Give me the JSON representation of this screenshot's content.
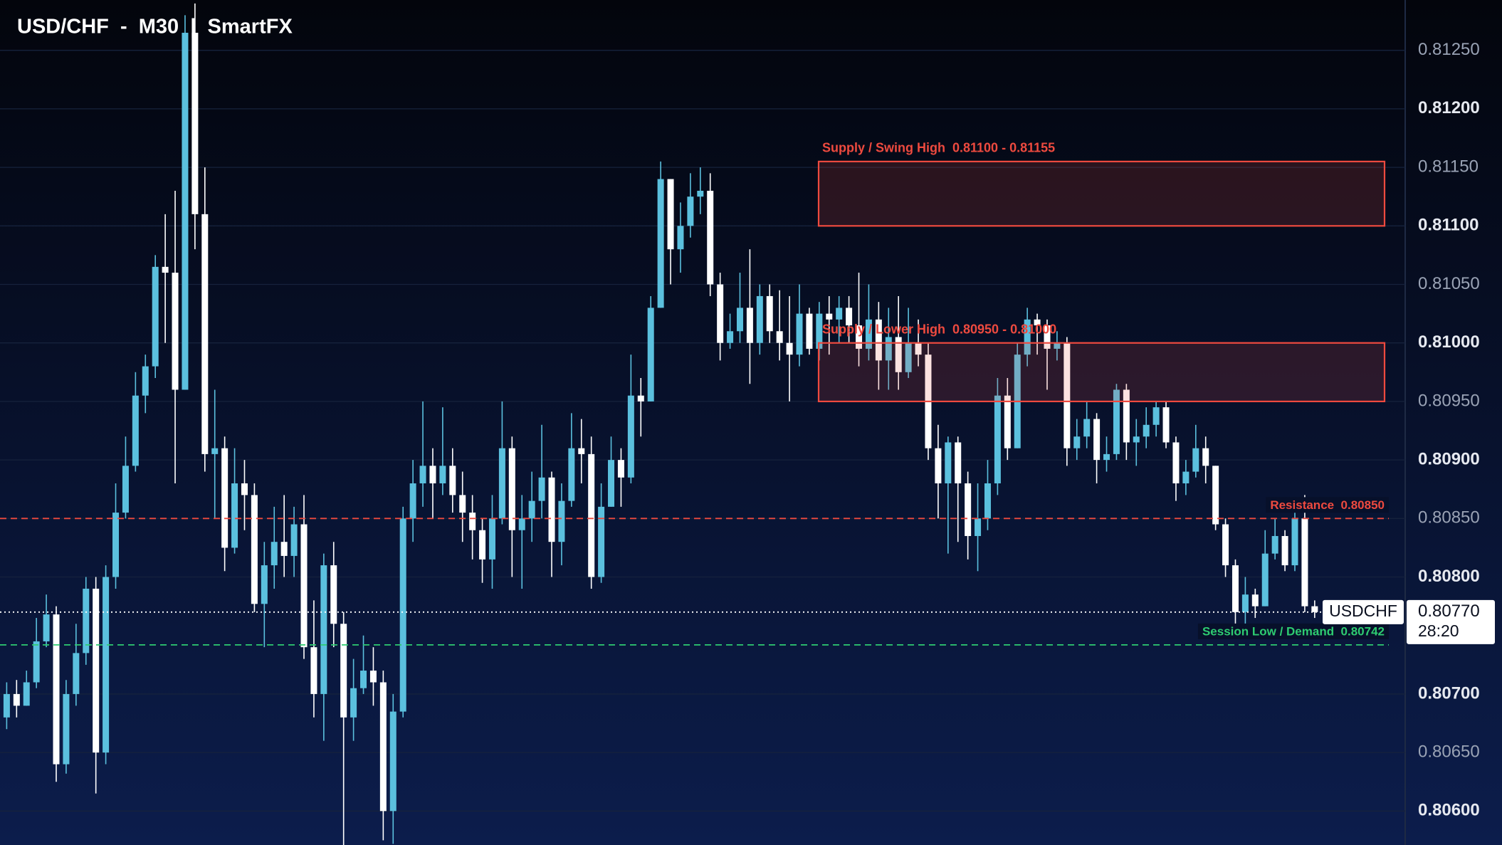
{
  "chart_data": {
    "type": "candlestick",
    "title": "USD/CHF  -  M30  |  SmartFX",
    "up_color": "#5bc0de",
    "down_color": "#ffffff",
    "open": [
      0.8068,
      0.807,
      0.8069,
      0.8071,
      0.80745,
      0.80768,
      0.8064,
      0.807,
      0.80735,
      0.8079,
      0.8065,
      0.808,
      0.80855,
      0.80895,
      0.80955,
      0.8098,
      0.81065,
      0.8106,
      0.8096,
      0.81265,
      0.8111,
      0.80905,
      0.8091,
      0.80825,
      0.8088,
      0.8087,
      0.80777,
      0.8081,
      0.8083,
      0.80818,
      0.80845,
      0.8074,
      0.807,
      0.8081,
      0.8076,
      0.8068,
      0.80705,
      0.8072,
      0.8071,
      0.806,
      0.80685,
      0.8085,
      0.8088,
      0.80895,
      0.8088,
      0.80895,
      0.8087,
      0.80855,
      0.8084,
      0.80815,
      0.8085,
      0.8091,
      0.8084,
      0.8085,
      0.80865,
      0.80885,
      0.8083,
      0.80865,
      0.8091,
      0.80905,
      0.808,
      0.8086,
      0.809,
      0.80885,
      0.80955,
      0.8095,
      0.8103,
      0.8114,
      0.8108,
      0.811,
      0.81125,
      0.8113,
      0.8105,
      0.81,
      0.8101,
      0.8103,
      0.81,
      0.8104,
      0.8101,
      0.81,
      0.8099,
      0.81025,
      0.80995,
      0.81025,
      0.8102,
      0.8103,
      0.81015,
      0.80995,
      0.8102,
      0.80985,
      0.81005,
      0.80975,
      0.81,
      0.8099,
      0.8091,
      0.8088,
      0.80915,
      0.8088,
      0.80835,
      0.8085,
      0.8088,
      0.80955,
      0.8091,
      0.8099,
      0.8102,
      0.81015,
      0.80995,
      0.81,
      0.8091,
      0.8092,
      0.80935,
      0.809,
      0.80905,
      0.8096,
      0.80915,
      0.8092,
      0.8093,
      0.80945,
      0.80915,
      0.8088,
      0.8089,
      0.8091,
      0.80895,
      0.80845,
      0.8081,
      0.8077,
      0.80785,
      0.80775,
      0.8082,
      0.80835,
      0.8081,
      0.8085,
      0.80775
    ],
    "high": [
      0.8071,
      0.80712,
      0.8072,
      0.80765,
      0.80785,
      0.80775,
      0.80712,
      0.8076,
      0.808,
      0.808,
      0.8081,
      0.8088,
      0.8092,
      0.80975,
      0.8099,
      0.81075,
      0.8111,
      0.8113,
      0.8128,
      0.8129,
      0.8115,
      0.8096,
      0.8092,
      0.8091,
      0.809,
      0.8088,
      0.8083,
      0.8086,
      0.8087,
      0.8086,
      0.8087,
      0.8078,
      0.8082,
      0.8083,
      0.8077,
      0.8073,
      0.8075,
      0.8074,
      0.8072,
      0.807,
      0.8086,
      0.809,
      0.8095,
      0.8091,
      0.80945,
      0.8091,
      0.8089,
      0.8087,
      0.8085,
      0.8087,
      0.8095,
      0.8092,
      0.8087,
      0.8089,
      0.8093,
      0.8089,
      0.8088,
      0.8094,
      0.80935,
      0.8092,
      0.8088,
      0.8092,
      0.8091,
      0.8099,
      0.8097,
      0.8104,
      0.81155,
      0.8114,
      0.8112,
      0.81145,
      0.8115,
      0.81145,
      0.8106,
      0.81025,
      0.8106,
      0.8108,
      0.8105,
      0.8105,
      0.81045,
      0.8104,
      0.8105,
      0.8103,
      0.81035,
      0.8104,
      0.8104,
      0.8104,
      0.8106,
      0.8105,
      0.81035,
      0.8103,
      0.8104,
      0.8103,
      0.8102,
      0.81,
      0.8093,
      0.8092,
      0.8092,
      0.8089,
      0.8088,
      0.809,
      0.8097,
      0.8097,
      0.81,
      0.8103,
      0.81025,
      0.8102,
      0.8101,
      0.81005,
      0.80935,
      0.8095,
      0.8094,
      0.8092,
      0.80965,
      0.80965,
      0.80935,
      0.80945,
      0.8095,
      0.8095,
      0.8092,
      0.809,
      0.8093,
      0.8092,
      0.80895,
      0.8085,
      0.80815,
      0.808,
      0.8079,
      0.8084,
      0.8085,
      0.8084,
      0.80865,
      0.8087,
      0.8078
    ],
    "low": [
      0.8067,
      0.8068,
      0.8069,
      0.80705,
      0.8074,
      0.80625,
      0.80632,
      0.8069,
      0.80725,
      0.80615,
      0.8064,
      0.8079,
      0.8085,
      0.8089,
      0.8094,
      0.8097,
      0.81,
      0.8088,
      0.8096,
      0.8108,
      0.8089,
      0.8085,
      0.80805,
      0.8082,
      0.8084,
      0.8077,
      0.8074,
      0.8079,
      0.808,
      0.808,
      0.8073,
      0.8068,
      0.8066,
      0.8074,
      0.8057,
      0.8066,
      0.807,
      0.8069,
      0.80575,
      0.80572,
      0.8068,
      0.8083,
      0.8086,
      0.8085,
      0.8087,
      0.80855,
      0.8083,
      0.80815,
      0.80795,
      0.8079,
      0.80845,
      0.808,
      0.8079,
      0.8083,
      0.8085,
      0.808,
      0.8081,
      0.8086,
      0.8088,
      0.8079,
      0.80795,
      0.8086,
      0.8086,
      0.8088,
      0.8092,
      0.8095,
      0.8103,
      0.8105,
      0.8106,
      0.8109,
      0.8111,
      0.8104,
      0.80985,
      0.80995,
      0.81,
      0.80965,
      0.8099,
      0.81,
      0.80985,
      0.8095,
      0.8098,
      0.8099,
      0.80985,
      0.8099,
      0.81,
      0.81,
      0.8098,
      0.80985,
      0.8096,
      0.8096,
      0.8096,
      0.8097,
      0.8098,
      0.809,
      0.8085,
      0.8082,
      0.8083,
      0.80815,
      0.80805,
      0.8084,
      0.8087,
      0.809,
      0.8091,
      0.8098,
      0.8099,
      0.8096,
      0.80985,
      0.80895,
      0.809,
      0.8091,
      0.8088,
      0.8089,
      0.809,
      0.809,
      0.80895,
      0.8091,
      0.8092,
      0.8091,
      0.80865,
      0.8087,
      0.80885,
      0.8088,
      0.8084,
      0.808,
      0.80755,
      0.8076,
      0.80765,
      0.80775,
      0.80815,
      0.80805,
      0.80805,
      0.8077,
      0.80765
    ],
    "close": [
      0.807,
      0.8069,
      0.8071,
      0.80745,
      0.80768,
      0.8064,
      0.807,
      0.80735,
      0.8079,
      0.8065,
      0.808,
      0.80855,
      0.80895,
      0.80955,
      0.8098,
      0.81065,
      0.8106,
      0.8096,
      0.81265,
      0.8111,
      0.80905,
      0.8091,
      0.80825,
      0.8088,
      0.8087,
      0.80777,
      0.8081,
      0.8083,
      0.80818,
      0.80845,
      0.8074,
      0.807,
      0.8081,
      0.8076,
      0.8068,
      0.80705,
      0.8072,
      0.8071,
      0.806,
      0.80685,
      0.8085,
      0.8088,
      0.80895,
      0.8088,
      0.80895,
      0.8087,
      0.80855,
      0.8084,
      0.80815,
      0.8085,
      0.8091,
      0.8084,
      0.8085,
      0.80865,
      0.80885,
      0.8083,
      0.80865,
      0.8091,
      0.80905,
      0.808,
      0.8086,
      0.809,
      0.80885,
      0.80955,
      0.8095,
      0.8103,
      0.8114,
      0.8108,
      0.811,
      0.81125,
      0.8113,
      0.8105,
      0.81,
      0.8101,
      0.8103,
      0.81,
      0.8104,
      0.8101,
      0.81,
      0.8099,
      0.81025,
      0.80995,
      0.81025,
      0.8102,
      0.8103,
      0.81015,
      0.80995,
      0.8102,
      0.80985,
      0.81005,
      0.80975,
      0.81,
      0.8099,
      0.8091,
      0.8088,
      0.80915,
      0.8088,
      0.80835,
      0.8085,
      0.8088,
      0.80955,
      0.8091,
      0.8099,
      0.8102,
      0.81015,
      0.80995,
      0.81,
      0.8091,
      0.8092,
      0.80935,
      0.809,
      0.80905,
      0.8096,
      0.80915,
      0.8092,
      0.8093,
      0.80945,
      0.80915,
      0.8088,
      0.8089,
      0.8091,
      0.80895,
      0.80845,
      0.8081,
      0.8077,
      0.80785,
      0.80775,
      0.8082,
      0.80835,
      0.8081,
      0.8085,
      0.80775,
      0.8077
    ],
    "ylim": [
      0.80571,
      0.81293
    ],
    "yticks": [
      {
        "value": 0.8125,
        "label": "0.81250"
      },
      {
        "value": 0.812,
        "label": "0.81200"
      },
      {
        "value": 0.8115,
        "label": "0.81150"
      },
      {
        "value": 0.811,
        "label": "0.81100"
      },
      {
        "value": 0.8105,
        "label": "0.81050"
      },
      {
        "value": 0.81,
        "label": "0.81000"
      },
      {
        "value": 0.8095,
        "label": "0.80950"
      },
      {
        "value": 0.809,
        "label": "0.80900"
      },
      {
        "value": 0.8085,
        "label": "0.80850"
      },
      {
        "value": 0.808,
        "label": "0.80800"
      },
      {
        "value": 0.807,
        "label": "0.80700"
      },
      {
        "value": 0.8065,
        "label": "0.80650"
      },
      {
        "value": 0.806,
        "label": "0.80600"
      }
    ],
    "grid": true,
    "zones": [
      {
        "label": "Supply / Swing High  0.81100 - 0.81155",
        "low": 0.811,
        "high": 0.81155,
        "color": "#ee4a3f"
      },
      {
        "label": "Supply / Lower High  0.80950 - 0.81000",
        "low": 0.8095,
        "high": 0.81,
        "color": "#ee4a3f"
      }
    ],
    "levels": [
      {
        "label": "Resistance  0.80850",
        "value": 0.8085,
        "color": "#ee4a3f"
      },
      {
        "label": "Session Low / Demand  0.80742",
        "value": 0.80742,
        "color": "#2ecc71"
      }
    ],
    "current": {
      "symbol": "USDCHF",
      "price": 0.8077,
      "price_label": "0.80770",
      "countdown": "28:20"
    }
  }
}
